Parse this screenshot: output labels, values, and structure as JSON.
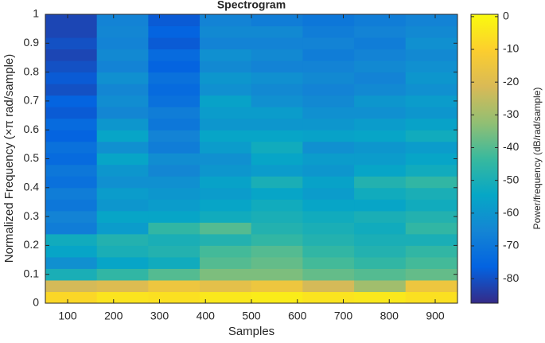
{
  "chart_data": {
    "type": "heatmap",
    "title": "Spectrogram",
    "x_label": "Samples",
    "y_label": "Normalized Frequency  (×π rad/sample)",
    "colorbar_label": "Power/frequency (dB/rad/sample)",
    "x": [
      107.5,
      219.5,
      331.5,
      443.5,
      555.5,
      667.5,
      779.5,
      891.5
    ],
    "y": [
      0.02,
      0.06,
      0.1,
      0.14,
      0.18,
      0.22,
      0.26,
      0.3,
      0.34,
      0.38,
      0.42,
      0.46,
      0.5,
      0.54,
      0.58,
      0.62,
      0.66,
      0.7,
      0.74,
      0.78,
      0.82,
      0.86,
      0.9,
      0.94,
      0.98
    ],
    "z": [
      [
        -8,
        -22,
        -50,
        -62,
        -55,
        -52,
        -68,
        -66,
        -70,
        -68,
        -72,
        -70,
        -74,
        -72,
        -76,
        -74,
        -78,
        -76,
        -80,
        -78,
        -80,
        -82,
        -80,
        -82,
        -82
      ],
      [
        -5,
        -20,
        -45,
        -55,
        -50,
        -48,
        -58,
        -55,
        -60,
        -58,
        -62,
        -60,
        -55,
        -62,
        -55,
        -60,
        -65,
        -63,
        -65,
        -62,
        -66,
        -64,
        -66,
        -65,
        -66
      ],
      [
        -6,
        -15,
        -40,
        -52,
        -48,
        -50,
        -45,
        -55,
        -58,
        -60,
        -62,
        -65,
        -63,
        -68,
        -66,
        -70,
        -68,
        -72,
        -74,
        -72,
        -76,
        -74,
        -78,
        -76,
        -78
      ],
      [
        -4,
        -18,
        -35,
        -40,
        -42,
        -48,
        -40,
        -52,
        -55,
        -58,
        -56,
        -60,
        -62,
        -58,
        -55,
        -60,
        -58,
        -56,
        -62,
        -60,
        -64,
        -62,
        -66,
        -64,
        -66
      ],
      [
        -3,
        -15,
        -35,
        -38,
        -40,
        -45,
        -48,
        -50,
        -52,
        -55,
        -50,
        -58,
        -55,
        -52,
        -55,
        -60,
        -58,
        -62,
        -64,
        -62,
        -66,
        -64,
        -66,
        -64,
        -68
      ],
      [
        -5,
        -22,
        -38,
        -42,
        -45,
        -48,
        -50,
        -52,
        -55,
        -58,
        -56,
        -60,
        -58,
        -62,
        -56,
        -60,
        -62,
        -64,
        -66,
        -64,
        -66,
        -68,
        -66,
        -68,
        -70
      ],
      [
        -4,
        -30,
        -40,
        -45,
        -48,
        -50,
        -52,
        -50,
        -55,
        -52,
        -48,
        -55,
        -58,
        -60,
        -55,
        -58,
        -62,
        -60,
        -64,
        -66,
        -64,
        -66,
        -68,
        -66,
        -68
      ],
      [
        -6,
        -15,
        -38,
        -42,
        -45,
        -50,
        -45,
        -48,
        -52,
        -50,
        -45,
        -52,
        -55,
        -58,
        -52,
        -56,
        -60,
        -58,
        -62,
        -60,
        -62,
        -64,
        -62,
        -64,
        -66
      ]
    ],
    "xlim": [
      51.5,
      948.5
    ],
    "xticks": [
      100,
      200,
      300,
      400,
      500,
      600,
      700,
      800,
      900
    ],
    "ylim": [
      0,
      1
    ],
    "yticks": [
      0,
      0.1,
      0.2,
      0.3,
      0.4,
      0.5,
      0.6,
      0.7,
      0.8,
      0.9,
      1
    ],
    "clim": [
      -87.5,
      0.7
    ],
    "cticks": [
      -80,
      -70,
      -60,
      -50,
      -40,
      -30,
      -20,
      -10,
      0
    ],
    "colormap": [
      "#352a87",
      "#0363e1",
      "#1485d4",
      "#06a7c6",
      "#38b99e",
      "#92bf73",
      "#d9ba56",
      "#fcce2e",
      "#f9fb0e"
    ]
  }
}
